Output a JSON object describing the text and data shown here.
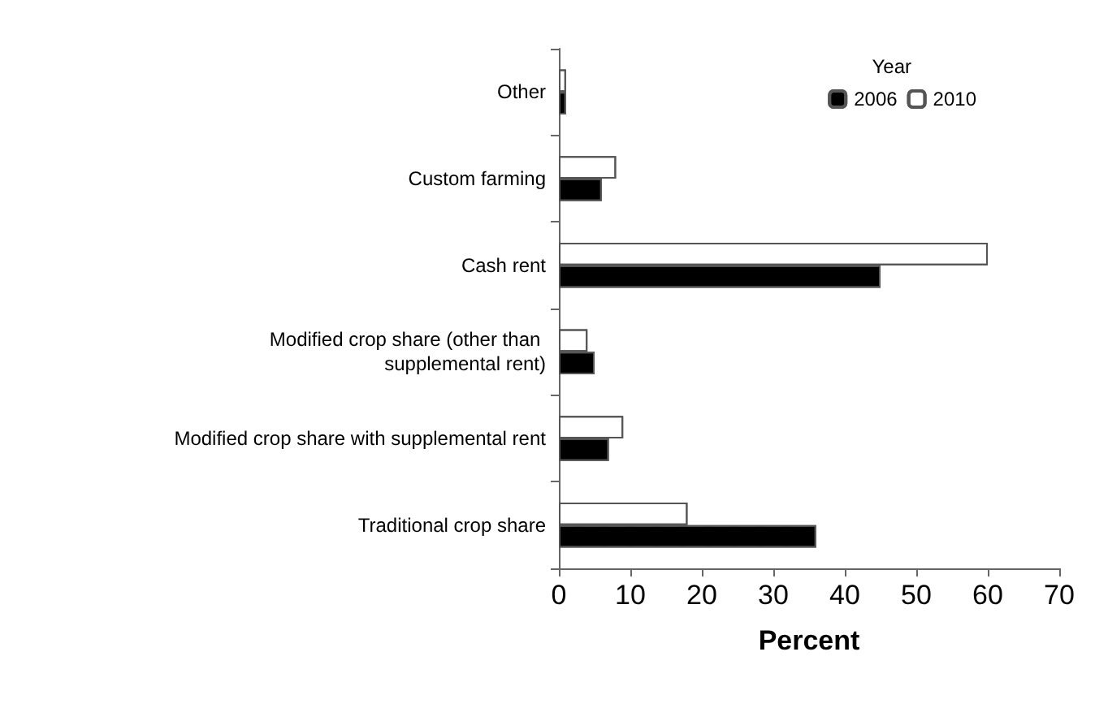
{
  "chart_data": {
    "type": "bar",
    "orientation": "horizontal",
    "xlabel": "Percent",
    "legend_title": "Year",
    "legend": "top right",
    "grid": false,
    "categories": [
      "Other",
      "Custom farming",
      "Cash rent",
      "Modified crop share (other than supplemental rent)",
      "Modified crop share with supplemental rent",
      "Traditional crop share"
    ],
    "series": [
      {
        "name": "2006",
        "color": "#000000",
        "values": [
          1,
          6,
          45,
          5,
          7,
          36
        ]
      },
      {
        "name": "2010",
        "color": "#ffffff",
        "values": [
          1,
          8,
          60,
          4,
          9,
          18
        ]
      }
    ],
    "xlim": [
      0,
      70
    ],
    "xticks": [
      0,
      10,
      20,
      30,
      40,
      50,
      60,
      70
    ]
  }
}
